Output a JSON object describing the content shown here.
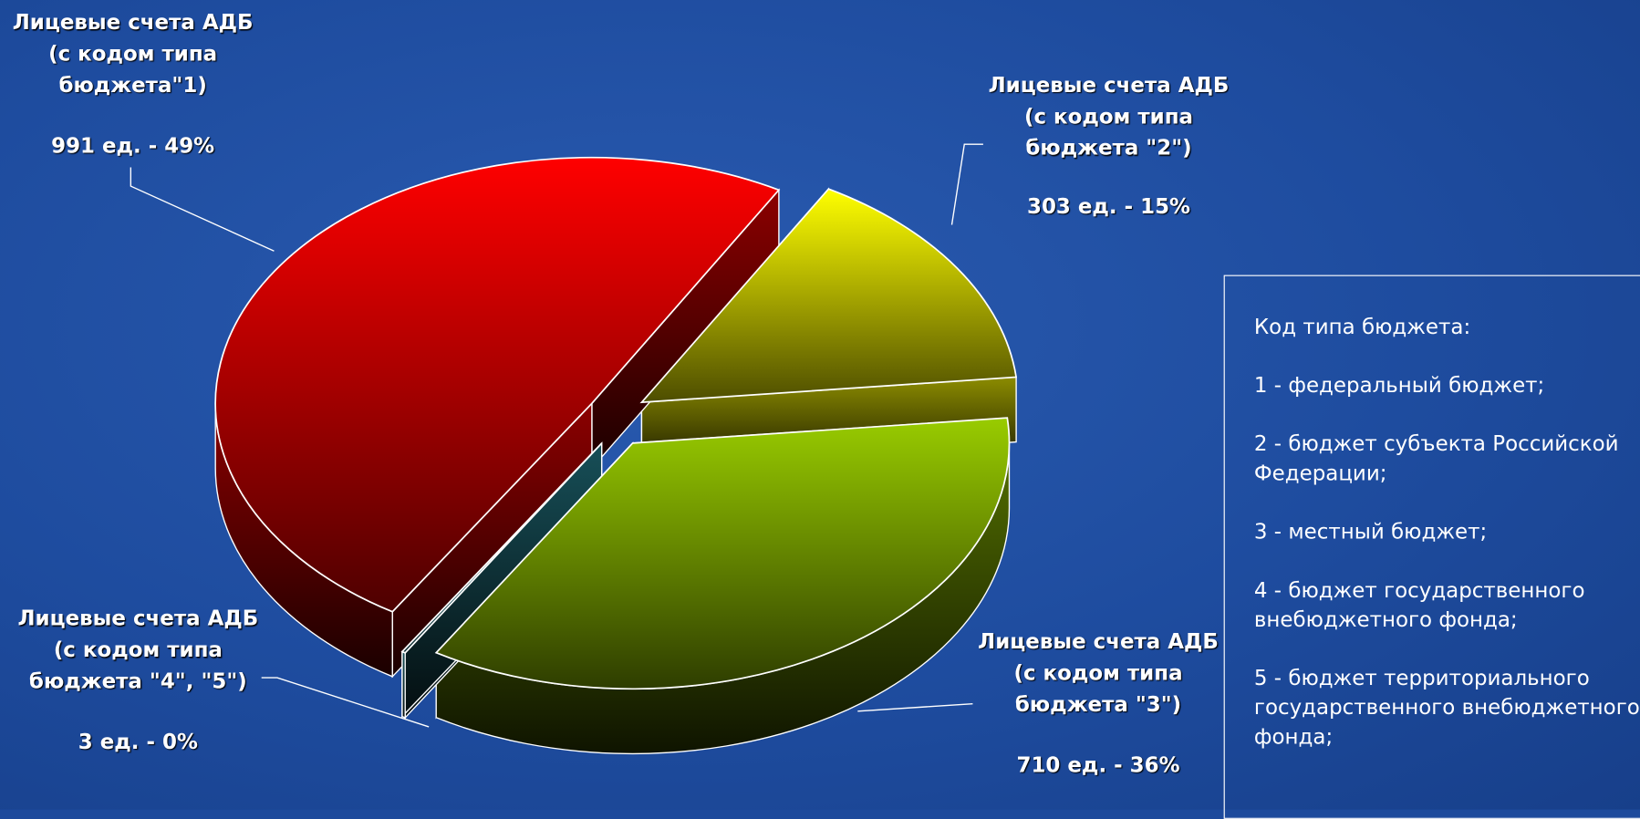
{
  "chart_data": {
    "type": "pie",
    "categories": [
      "Лицевые счета АДБ\n(с кодом типа\nбюджета\"1)",
      "Лицевые счета АДБ\n(с кодом типа\nбюджета \"2\")",
      "Лицевые счета АДБ\n(с кодом типа\nбюджета \"3\")",
      "Лицевые счета АДБ\n(с кодом типа\nбюджета \"4\", \"5\")"
    ],
    "values": [
      991,
      303,
      710,
      3
    ],
    "value_labels": [
      "991 ед. - 49%",
      "303 ед. - 15%",
      "710 ед. - 36%",
      "3 ед. - 0%"
    ],
    "colors": [
      "#ff0000",
      "#ffff00",
      "#99cc00",
      "#2a8fa0"
    ]
  },
  "note": {
    "title": "Код типа бюджета:",
    "items": [
      "1 - федеральный бюджет;",
      "2 - бюджет субъекта Российской Федерации;",
      "3 - местный бюджет;",
      "4 - бюджет государственного внебюджетного фонда;",
      "5 - бюджет территориального государственного внебюджетного фонда;"
    ]
  }
}
